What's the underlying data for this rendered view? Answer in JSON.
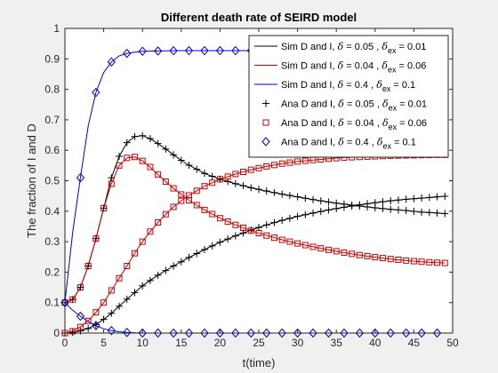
{
  "chart_data": {
    "type": "line",
    "title": "Different death rate of SEIRD model",
    "xlabel": "t(time)",
    "ylabel": "The fraction of I and D",
    "xlim": [
      0,
      50
    ],
    "ylim": [
      0,
      1
    ],
    "xticks": [
      "0",
      "5",
      "10",
      "15",
      "20",
      "25",
      "30",
      "35",
      "40",
      "45",
      "50"
    ],
    "yticks": [
      "0",
      "0.1",
      "0.2",
      "0.3",
      "0.4",
      "0.5",
      "0.6",
      "0.7",
      "0.8",
      "0.9",
      "1"
    ],
    "grid": false,
    "legend_position": "top-right",
    "legend": [
      {
        "prefix": "Sim D and I, ",
        "delta": "0.05",
        "delta_ex": "0.01",
        "style": "line",
        "color": "#000000"
      },
      {
        "prefix": "Sim D and I, ",
        "delta": "0.04",
        "delta_ex": "0.06",
        "style": "line",
        "color": "#cc0000"
      },
      {
        "prefix": "Sim D and I, ",
        "delta": "0.4",
        "delta_ex": "0.1",
        "style": "line",
        "color": "#0000cc"
      },
      {
        "prefix": "Ana D and I, ",
        "delta": "0.05",
        "delta_ex": "0.01",
        "style": "plus",
        "color": "#000000"
      },
      {
        "prefix": "Ana D and I, ",
        "delta": "0.04",
        "delta_ex": "0.06",
        "style": "square",
        "color": "#cc0000"
      },
      {
        "prefix": "Ana D and I, ",
        "delta": "0.4",
        "delta_ex": "0.1",
        "style": "diamond",
        "color": "#0000cc"
      }
    ],
    "series": [
      {
        "name": "Sim D and I, δ = 0.05, δex = 0.01 (I)",
        "color": "#000000",
        "x": [
          0,
          1,
          2,
          3,
          4,
          5,
          6,
          7,
          8,
          9,
          10,
          11,
          12,
          13,
          14,
          15,
          16,
          18,
          20,
          22,
          24,
          26,
          28,
          30,
          32,
          34,
          36,
          38,
          40,
          42,
          44,
          46,
          48,
          49
        ],
        "y": [
          0.1,
          0.11,
          0.15,
          0.22,
          0.31,
          0.41,
          0.51,
          0.58,
          0.625,
          0.645,
          0.648,
          0.638,
          0.622,
          0.604,
          0.585,
          0.567,
          0.551,
          0.524,
          0.505,
          0.49,
          0.477,
          0.466,
          0.456,
          0.447,
          0.438,
          0.43,
          0.423,
          0.417,
          0.411,
          0.406,
          0.402,
          0.397,
          0.394,
          0.392
        ]
      },
      {
        "name": "Sim D and I, δ = 0.05, δex = 0.01 (D)",
        "color": "#000000",
        "x": [
          0,
          1,
          2,
          3,
          4,
          5,
          6,
          7,
          8,
          9,
          10,
          12,
          14,
          16,
          18,
          20,
          22,
          24,
          26,
          28,
          30,
          32,
          34,
          36,
          38,
          40,
          42,
          44,
          46,
          48,
          49
        ],
        "y": [
          0.0,
          0.002,
          0.007,
          0.015,
          0.028,
          0.045,
          0.065,
          0.088,
          0.111,
          0.133,
          0.155,
          0.19,
          0.22,
          0.248,
          0.274,
          0.298,
          0.319,
          0.338,
          0.355,
          0.37,
          0.383,
          0.394,
          0.404,
          0.413,
          0.421,
          0.428,
          0.434,
          0.439,
          0.443,
          0.447,
          0.449
        ]
      },
      {
        "name": "Sim D and I, δ = 0.04, δex = 0.06 (I)",
        "color": "#cc0000",
        "x": [
          0,
          1,
          2,
          3,
          4,
          5,
          6,
          7,
          8,
          9,
          10,
          11,
          12,
          13,
          14,
          15,
          16,
          18,
          20,
          22,
          24,
          26,
          28,
          30,
          32,
          34,
          36,
          38,
          40,
          42,
          44,
          46,
          48,
          49
        ],
        "y": [
          0.1,
          0.11,
          0.15,
          0.22,
          0.31,
          0.41,
          0.49,
          0.55,
          0.575,
          0.578,
          0.565,
          0.545,
          0.52,
          0.497,
          0.475,
          0.455,
          0.436,
          0.404,
          0.377,
          0.355,
          0.336,
          0.32,
          0.306,
          0.294,
          0.283,
          0.273,
          0.264,
          0.256,
          0.249,
          0.243,
          0.238,
          0.234,
          0.231,
          0.23
        ]
      },
      {
        "name": "Sim D and I, δ = 0.04, δex = 0.06 (D)",
        "color": "#cc0000",
        "x": [
          0,
          1,
          2,
          3,
          4,
          5,
          6,
          7,
          8,
          9,
          10,
          11,
          12,
          13,
          14,
          15,
          16,
          18,
          20,
          22,
          24,
          26,
          28,
          30,
          32,
          34,
          36,
          38,
          40,
          42,
          44,
          46,
          48,
          49
        ],
        "y": [
          0.0,
          0.006,
          0.02,
          0.04,
          0.068,
          0.1,
          0.14,
          0.18,
          0.22,
          0.262,
          0.3,
          0.333,
          0.363,
          0.39,
          0.414,
          0.434,
          0.452,
          0.482,
          0.505,
          0.522,
          0.536,
          0.547,
          0.556,
          0.563,
          0.568,
          0.572,
          0.576,
          0.578,
          0.58,
          0.582,
          0.583,
          0.584,
          0.585,
          0.585
        ]
      },
      {
        "name": "Sim D and I, δ = 0.4, δex = 0.1 (I)",
        "color": "#0000cc",
        "x": [
          0,
          1,
          2,
          3,
          4,
          5,
          6,
          7,
          8,
          9,
          10,
          12,
          15,
          20,
          30,
          40,
          49
        ],
        "y": [
          0.1,
          0.075,
          0.055,
          0.038,
          0.024,
          0.014,
          0.008,
          0.004,
          0.002,
          0.001,
          0.0,
          0.0,
          0.0,
          0.0,
          0.0,
          0.0,
          0.0
        ]
      },
      {
        "name": "Sim D and I, δ = 0.4, δex = 0.1 (D)",
        "color": "#0000cc",
        "x": [
          0,
          1,
          2,
          3,
          4,
          5,
          6,
          7,
          8,
          9,
          10,
          12,
          15,
          20,
          30,
          40,
          49
        ],
        "y": [
          0.1,
          0.33,
          0.51,
          0.68,
          0.79,
          0.855,
          0.89,
          0.91,
          0.918,
          0.922,
          0.925,
          0.926,
          0.927,
          0.927,
          0.927,
          0.927,
          0.927
        ]
      }
    ]
  }
}
